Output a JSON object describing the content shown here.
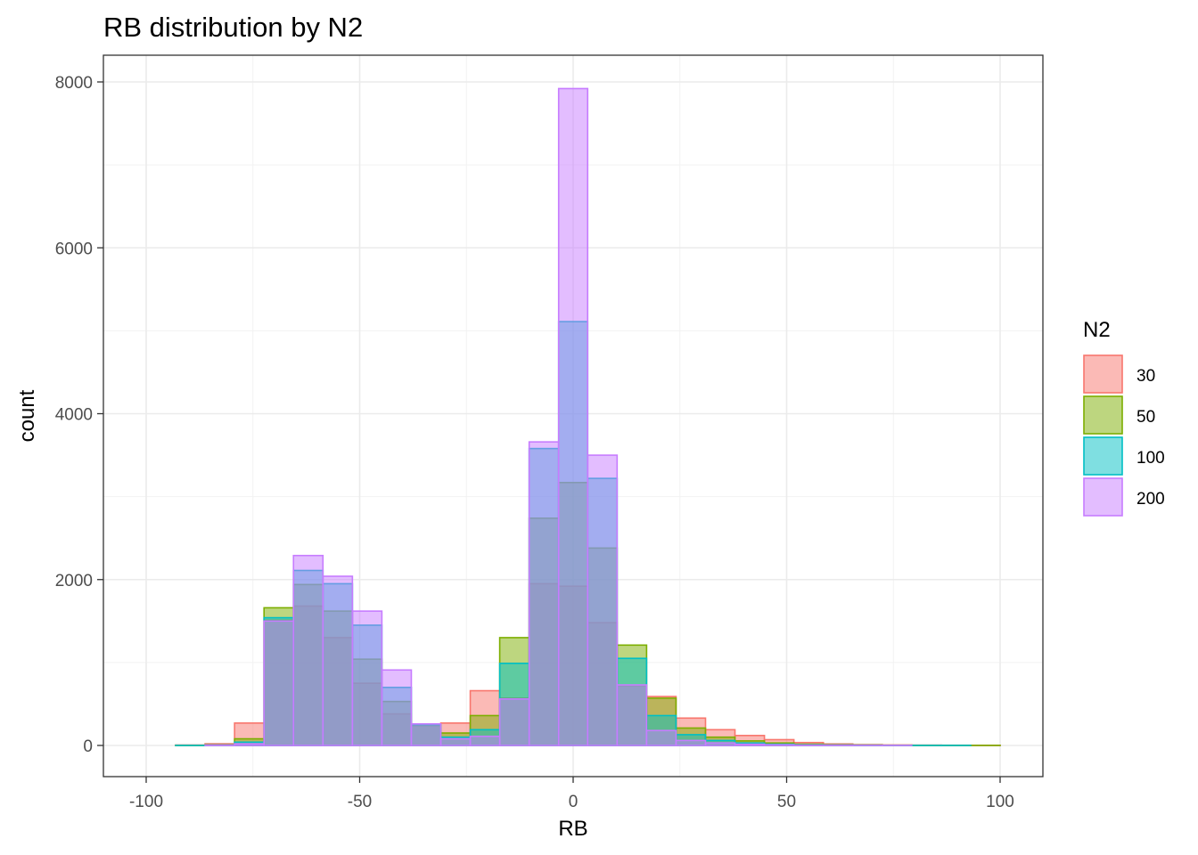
{
  "chart_data": {
    "type": "bar",
    "subtype": "overlaid histogram",
    "title": "RB distribution by N2",
    "xlabel": "RB",
    "ylabel": "count",
    "xlim": [
      -100,
      100
    ],
    "ylim": [
      0,
      8000
    ],
    "x_ticks": [
      -100,
      -50,
      0,
      50,
      100
    ],
    "y_ticks": [
      0,
      2000,
      4000,
      6000,
      8000
    ],
    "grid": true,
    "legend": {
      "title": "N2",
      "position": "right"
    },
    "bins": [
      [
        -100,
        -93.1
      ],
      [
        -93.1,
        -86.2
      ],
      [
        -86.2,
        -79.3
      ],
      [
        -79.3,
        -72.4
      ],
      [
        -72.4,
        -65.5
      ],
      [
        -65.5,
        -58.6
      ],
      [
        -58.6,
        -51.7
      ],
      [
        -51.7,
        -44.8
      ],
      [
        -44.8,
        -37.9
      ],
      [
        -37.9,
        -31.0
      ],
      [
        -31.0,
        -24.1
      ],
      [
        -24.1,
        -17.2
      ],
      [
        -17.2,
        -10.3
      ],
      [
        -10.3,
        -3.4
      ],
      [
        -3.4,
        3.4
      ],
      [
        3.4,
        10.3
      ],
      [
        10.3,
        17.2
      ],
      [
        17.2,
        24.1
      ],
      [
        24.1,
        31.0
      ],
      [
        31.0,
        37.9
      ],
      [
        37.9,
        44.8
      ],
      [
        44.8,
        51.7
      ],
      [
        51.7,
        58.6
      ],
      [
        58.6,
        65.5
      ],
      [
        65.5,
        72.4
      ],
      [
        72.4,
        79.3
      ],
      [
        79.3,
        86.2
      ],
      [
        86.2,
        93.1
      ],
      [
        93.1,
        100
      ]
    ],
    "series": [
      {
        "name": "30",
        "color": "#F8766D",
        "values": [
          0,
          5,
          20,
          270,
          1510,
          1680,
          1300,
          750,
          380,
          240,
          270,
          660,
          570,
          1950,
          1920,
          1480,
          720,
          590,
          330,
          190,
          120,
          70,
          35,
          18,
          10,
          6,
          4,
          3,
          2
        ]
      },
      {
        "name": "50",
        "color": "#7CAE00",
        "values": [
          0,
          2,
          8,
          80,
          1660,
          1940,
          1620,
          1040,
          530,
          240,
          150,
          360,
          1300,
          2740,
          3170,
          2380,
          1210,
          570,
          210,
          100,
          55,
          30,
          15,
          8,
          5,
          3,
          2,
          1,
          1
        ]
      },
      {
        "name": "100",
        "color": "#00BFC4",
        "values": [
          0,
          1,
          5,
          40,
          1540,
          2110,
          1950,
          1450,
          700,
          250,
          100,
          190,
          990,
          3580,
          5110,
          3220,
          1050,
          360,
          130,
          60,
          30,
          15,
          8,
          5,
          3,
          2,
          1,
          1,
          0
        ]
      },
      {
        "name": "200",
        "color": "#C77CFF",
        "values": [
          0,
          0,
          3,
          20,
          1500,
          2290,
          2040,
          1620,
          910,
          260,
          80,
          110,
          560,
          3660,
          7920,
          3500,
          730,
          180,
          60,
          30,
          15,
          8,
          4,
          2,
          1,
          1,
          0,
          0,
          0
        ]
      }
    ]
  }
}
